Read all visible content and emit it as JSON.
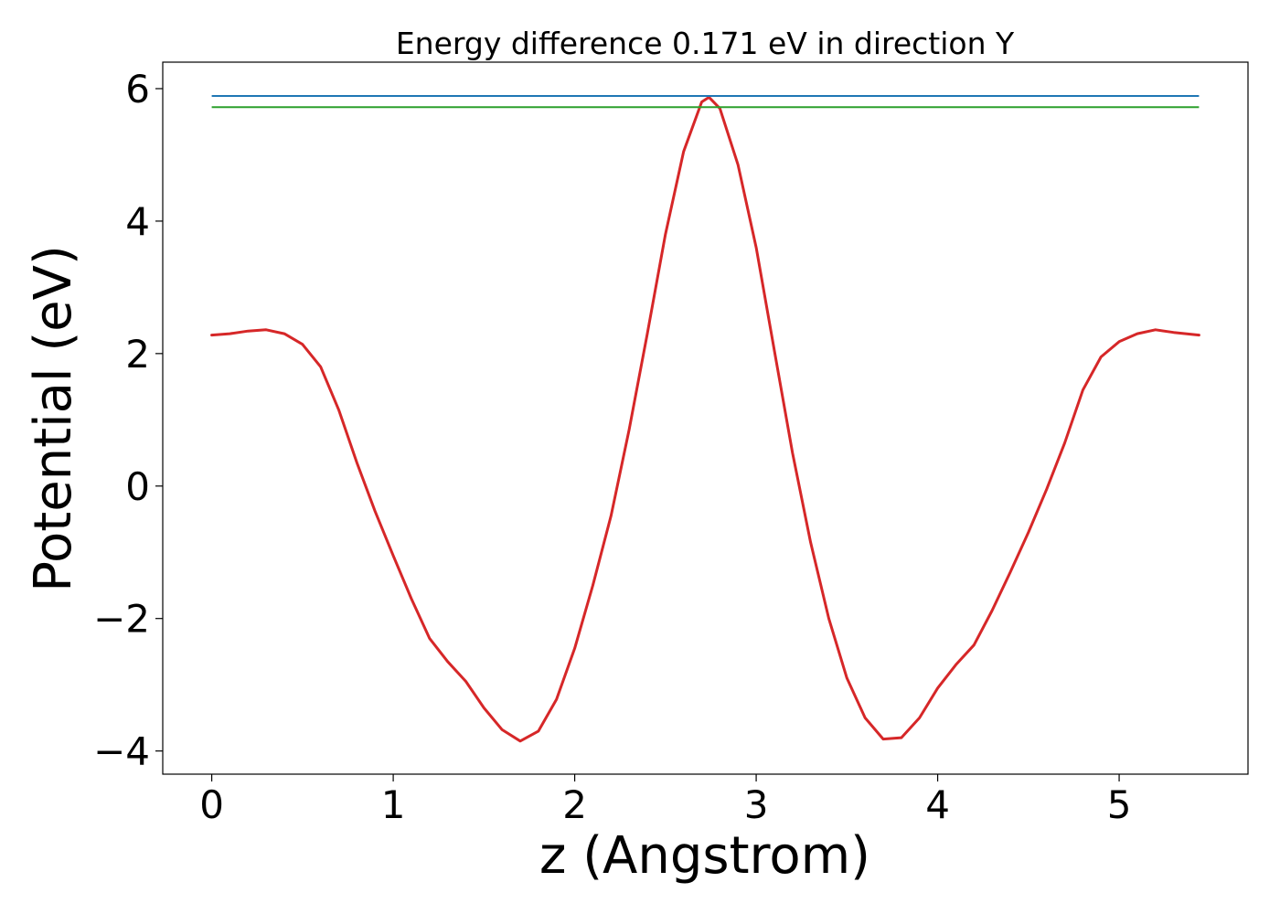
{
  "chart_data": {
    "type": "line",
    "title": "Energy difference 0.171 eV in direction Y",
    "xlabel": "z (Angstrom)",
    "ylabel": "Potential (eV)",
    "xlim": [
      -0.27,
      5.71
    ],
    "ylim": [
      -4.35,
      6.4
    ],
    "xticks": [
      0,
      1,
      2,
      3,
      4,
      5
    ],
    "yticks": [
      -4,
      -2,
      0,
      2,
      4,
      6
    ],
    "xtick_labels": [
      "0",
      "1",
      "2",
      "3",
      "4",
      "5"
    ],
    "ytick_labels": [
      "−4",
      "−2",
      "0",
      "2",
      "4",
      "6"
    ],
    "grid": false,
    "legend": "none",
    "series": [
      {
        "color": "#d62728",
        "kind": "curve",
        "points": [
          [
            0.0,
            2.28
          ],
          [
            0.1,
            2.3
          ],
          [
            0.2,
            2.34
          ],
          [
            0.3,
            2.36
          ],
          [
            0.4,
            2.3
          ],
          [
            0.5,
            2.14
          ],
          [
            0.6,
            1.8
          ],
          [
            0.7,
            1.15
          ],
          [
            0.8,
            0.35
          ],
          [
            0.9,
            -0.38
          ],
          [
            1.0,
            -1.05
          ],
          [
            1.1,
            -1.7
          ],
          [
            1.2,
            -2.3
          ],
          [
            1.3,
            -2.65
          ],
          [
            1.4,
            -2.95
          ],
          [
            1.5,
            -3.35
          ],
          [
            1.6,
            -3.68
          ],
          [
            1.7,
            -3.85
          ],
          [
            1.8,
            -3.7
          ],
          [
            1.9,
            -3.22
          ],
          [
            2.0,
            -2.45
          ],
          [
            2.1,
            -1.5
          ],
          [
            2.2,
            -0.45
          ],
          [
            2.3,
            0.85
          ],
          [
            2.4,
            2.3
          ],
          [
            2.5,
            3.8
          ],
          [
            2.6,
            5.05
          ],
          [
            2.7,
            5.8
          ],
          [
            2.74,
            5.87
          ],
          [
            2.8,
            5.7
          ],
          [
            2.9,
            4.85
          ],
          [
            3.0,
            3.6
          ],
          [
            3.1,
            2.05
          ],
          [
            3.2,
            0.5
          ],
          [
            3.3,
            -0.85
          ],
          [
            3.4,
            -2.0
          ],
          [
            3.5,
            -2.9
          ],
          [
            3.6,
            -3.5
          ],
          [
            3.7,
            -3.82
          ],
          [
            3.8,
            -3.8
          ],
          [
            3.9,
            -3.5
          ],
          [
            4.0,
            -3.05
          ],
          [
            4.1,
            -2.7
          ],
          [
            4.2,
            -2.4
          ],
          [
            4.3,
            -1.88
          ],
          [
            4.4,
            -1.3
          ],
          [
            4.5,
            -0.7
          ],
          [
            4.6,
            -0.05
          ],
          [
            4.7,
            0.65
          ],
          [
            4.8,
            1.45
          ],
          [
            4.9,
            1.95
          ],
          [
            5.0,
            2.18
          ],
          [
            5.1,
            2.3
          ],
          [
            5.2,
            2.36
          ],
          [
            5.3,
            2.32
          ],
          [
            5.44,
            2.28
          ]
        ]
      },
      {
        "color": "#1f77b4",
        "kind": "hline",
        "y": 5.89,
        "x": [
          0,
          5.44
        ]
      },
      {
        "color": "#2ca02c",
        "kind": "hline",
        "y": 5.72,
        "x": [
          0,
          5.44
        ]
      }
    ]
  }
}
